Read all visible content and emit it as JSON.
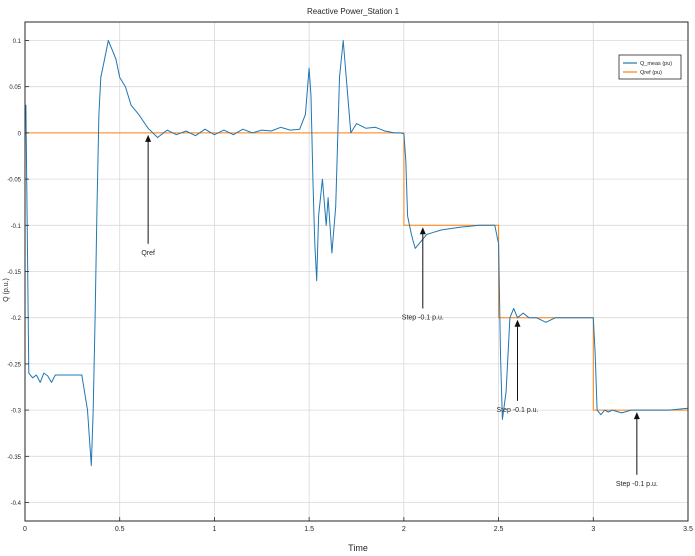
{
  "chart_data": {
    "type": "line",
    "title": "Reactive Power_Station 1",
    "xlabel": "Time",
    "ylabel": "Q (p.u.)",
    "xlim": [
      0,
      3.5
    ],
    "ylim": [
      -0.42,
      0.12
    ],
    "grid": true,
    "legend_position": "top-right",
    "x_ticks": [
      0,
      0.5,
      1,
      1.5,
      2,
      2.5,
      3,
      3.5
    ],
    "x_tick_labels": [
      "0",
      "0.5",
      "1",
      "1.5",
      "2",
      "2.5",
      "3",
      "3.5"
    ],
    "y_ticks": [
      0.1,
      0.05,
      0,
      -0.05,
      -0.1,
      -0.15,
      -0.2,
      -0.25,
      -0.3,
      -0.35,
      -0.4
    ],
    "y_tick_labels": [
      "0.1",
      "0.05",
      "0",
      "-0.05",
      "-0.1",
      "-0.15",
      "-0.2",
      "-0.25",
      "-0.3",
      "-0.35",
      "-0.4"
    ],
    "series": [
      {
        "name": "Q_meas (pu)",
        "color": "#1f77b4",
        "x": [
          0,
          0.005,
          0.02,
          0.04,
          0.06,
          0.08,
          0.1,
          0.12,
          0.14,
          0.16,
          0.2,
          0.25,
          0.3,
          0.33,
          0.35,
          0.36,
          0.37,
          0.38,
          0.39,
          0.4,
          0.42,
          0.44,
          0.46,
          0.48,
          0.5,
          0.53,
          0.56,
          0.6,
          0.65,
          0.7,
          0.75,
          0.8,
          0.85,
          0.9,
          0.95,
          1.0,
          1.05,
          1.1,
          1.15,
          1.2,
          1.25,
          1.3,
          1.35,
          1.4,
          1.45,
          1.48,
          1.5,
          1.51,
          1.52,
          1.53,
          1.54,
          1.55,
          1.57,
          1.59,
          1.6,
          1.62,
          1.64,
          1.66,
          1.68,
          1.7,
          1.72,
          1.75,
          1.8,
          1.85,
          1.9,
          1.95,
          1.98,
          2.0,
          2.01,
          2.02,
          2.04,
          2.06,
          2.08,
          2.1,
          2.12,
          2.15,
          2.2,
          2.3,
          2.4,
          2.48,
          2.5,
          2.51,
          2.52,
          2.54,
          2.56,
          2.58,
          2.6,
          2.63,
          2.66,
          2.7,
          2.75,
          2.8,
          2.9,
          2.98,
          3.0,
          3.01,
          3.02,
          3.04,
          3.06,
          3.08,
          3.1,
          3.15,
          3.2,
          3.3,
          3.4,
          3.5
        ],
        "y": [
          0.02,
          0.03,
          -0.26,
          -0.265,
          -0.262,
          -0.27,
          -0.26,
          -0.263,
          -0.27,
          -0.262,
          -0.262,
          -0.262,
          -0.262,
          -0.3,
          -0.36,
          -0.3,
          -0.2,
          -0.08,
          0.02,
          0.06,
          0.08,
          0.1,
          0.09,
          0.08,
          0.06,
          0.05,
          0.03,
          0.02,
          0.005,
          -0.005,
          0.003,
          -0.002,
          0.002,
          -0.003,
          0.004,
          -0.002,
          0.003,
          -0.002,
          0.004,
          0.0,
          0.003,
          0.002,
          0.006,
          0.003,
          0.004,
          0.02,
          0.07,
          0.04,
          -0.05,
          -0.12,
          -0.16,
          -0.09,
          -0.05,
          -0.1,
          -0.07,
          -0.13,
          -0.08,
          0.06,
          0.1,
          0.05,
          0.0,
          0.01,
          0.005,
          0.006,
          0.002,
          0.0,
          0.0,
          -0.001,
          -0.03,
          -0.09,
          -0.11,
          -0.125,
          -0.12,
          -0.115,
          -0.11,
          -0.108,
          -0.105,
          -0.102,
          -0.1,
          -0.1,
          -0.12,
          -0.24,
          -0.31,
          -0.28,
          -0.2,
          -0.19,
          -0.2,
          -0.195,
          -0.2,
          -0.2,
          -0.205,
          -0.2,
          -0.2,
          -0.2,
          -0.2,
          -0.24,
          -0.3,
          -0.305,
          -0.3,
          -0.302,
          -0.3,
          -0.303,
          -0.3,
          -0.3,
          -0.3,
          -0.298
        ]
      },
      {
        "name": "Qref (pu)",
        "color": "#ff7f0e",
        "x": [
          0,
          2.0,
          2.0,
          2.5,
          2.5,
          3.0,
          3.0,
          3.5
        ],
        "y": [
          0,
          0,
          -0.1,
          -0.1,
          -0.2,
          -0.2,
          -0.3,
          -0.3
        ]
      }
    ],
    "annotations": [
      {
        "text": "Qref",
        "arrow_x": 0.65,
        "arrow_y_from": -0.12,
        "arrow_y_to": 0.0
      },
      {
        "text": "Step -0.1 p.u.",
        "arrow_x": 2.1,
        "arrow_y_from": -0.19,
        "arrow_y_to": -0.1
      },
      {
        "text": "Step -0.1 p.u.",
        "arrow_x": 2.6,
        "arrow_y_from": -0.29,
        "arrow_y_to": -0.2
      },
      {
        "text": "Step -0.1 p.u.",
        "arrow_x": 3.23,
        "arrow_y_from": -0.37,
        "arrow_y_to": -0.3
      }
    ]
  }
}
